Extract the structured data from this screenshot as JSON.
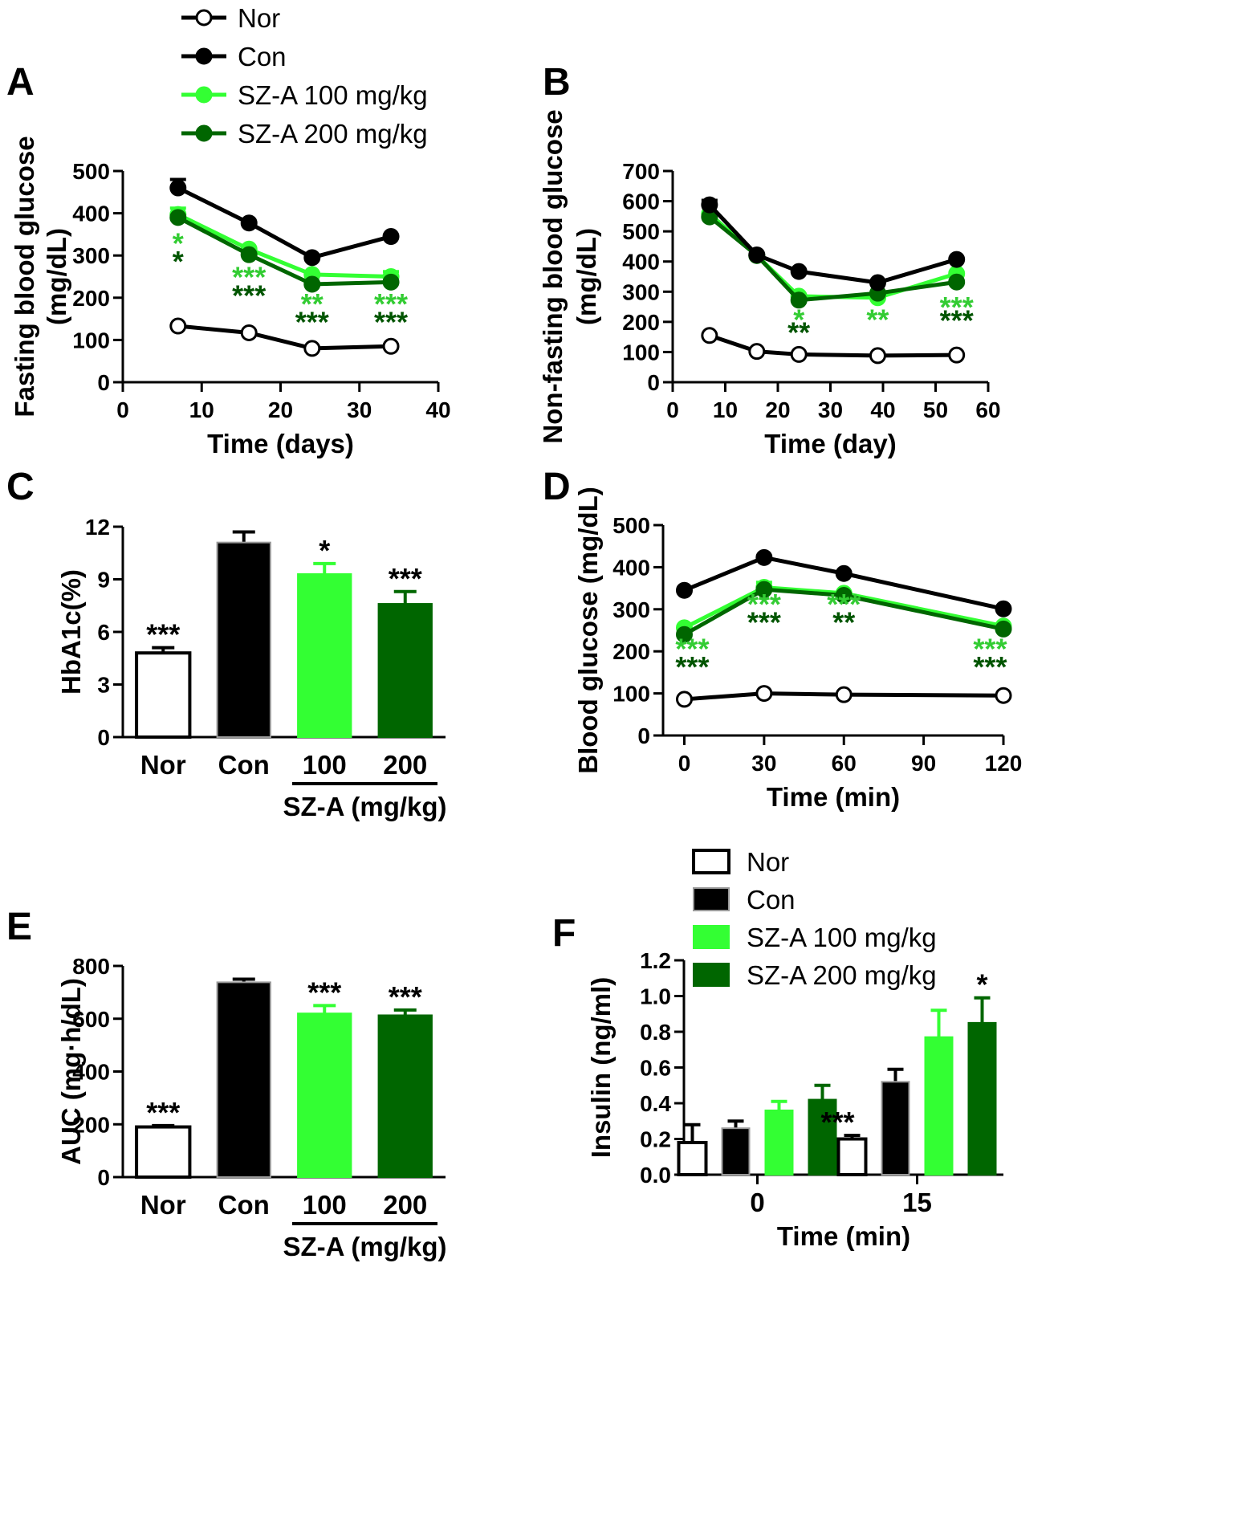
{
  "colors": {
    "Nor": "#ffffff",
    "Con": "#000000",
    "SZA100": "#33ff33",
    "SZA200": "#006600",
    "annotLight": "#33cc33",
    "annotDark": "#005500"
  },
  "legend_top": {
    "items": [
      {
        "label": "Nor",
        "key": "Nor",
        "marker": "open-circle"
      },
      {
        "label": "Con",
        "key": "Con",
        "marker": "filled-circle"
      },
      {
        "label": "SZ-A 100 mg/kg",
        "key": "SZA100",
        "marker": "filled-circle"
      },
      {
        "label": "SZ-A 200 mg/kg",
        "key": "SZA200",
        "marker": "filled-circle"
      }
    ]
  },
  "legend_f": {
    "items": [
      {
        "label": "Nor",
        "key": "Nor"
      },
      {
        "label": "Con",
        "key": "Con"
      },
      {
        "label": "SZ-A 100 mg/kg",
        "key": "SZA100"
      },
      {
        "label": "SZ-A 200 mg/kg",
        "key": "SZA200"
      }
    ]
  },
  "chart_data": [
    {
      "panel": "A",
      "type": "line",
      "xlabel": "Time (days)",
      "ylabel": "Fasting blood glucose (mg/dL)",
      "xlim": [
        0,
        40
      ],
      "ylim": [
        0,
        500
      ],
      "xticks": [
        0,
        10,
        20,
        30,
        40
      ],
      "yticks": [
        0,
        100,
        200,
        300,
        400,
        500
      ],
      "x": [
        7,
        16,
        24,
        34
      ],
      "series": [
        {
          "name": "Nor",
          "key": "Nor",
          "open": true,
          "values": [
            133,
            117,
            80,
            85
          ],
          "err": [
            0,
            0,
            0,
            0
          ]
        },
        {
          "name": "Con",
          "key": "Con",
          "values": [
            460,
            377,
            295,
            345
          ],
          "err": [
            20,
            0,
            0,
            0
          ]
        },
        {
          "name": "SZ-A 100 mg/kg",
          "key": "SZA100",
          "values": [
            397,
            315,
            255,
            250
          ],
          "err": [
            15,
            0,
            0,
            12
          ]
        },
        {
          "name": "SZ-A 200 mg/kg",
          "key": "SZA200",
          "values": [
            390,
            302,
            232,
            237
          ],
          "err": [
            0,
            0,
            0,
            0
          ]
        }
      ],
      "annotations": [
        {
          "x": 7,
          "y": 305,
          "text": "*",
          "color": "annotLight"
        },
        {
          "x": 7,
          "y": 262,
          "text": "*",
          "color": "annotDark"
        },
        {
          "x": 16,
          "y": 225,
          "text": "***",
          "color": "annotLight"
        },
        {
          "x": 16,
          "y": 182,
          "text": "***",
          "color": "annotDark"
        },
        {
          "x": 24,
          "y": 162,
          "text": "**",
          "color": "annotLight"
        },
        {
          "x": 24,
          "y": 119,
          "text": "***",
          "color": "annotDark"
        },
        {
          "x": 34,
          "y": 162,
          "text": "***",
          "color": "annotLight"
        },
        {
          "x": 34,
          "y": 119,
          "text": "***",
          "color": "annotDark"
        }
      ]
    },
    {
      "panel": "B",
      "type": "line",
      "xlabel": "Time (day)",
      "ylabel": "Non-fasting blood glucose (mg/dL)",
      "xlim": [
        0,
        60
      ],
      "ylim": [
        0,
        700
      ],
      "xticks": [
        0,
        10,
        20,
        30,
        40,
        50,
        60
      ],
      "yticks": [
        0,
        100,
        200,
        300,
        400,
        500,
        600,
        700
      ],
      "x": [
        7,
        16,
        24,
        39,
        54
      ],
      "series": [
        {
          "name": "Nor",
          "key": "Nor",
          "open": true,
          "values": [
            155,
            102,
            92,
            88,
            90
          ],
          "err": [
            0,
            0,
            0,
            0,
            0
          ]
        },
        {
          "name": "Con",
          "key": "Con",
          "values": [
            588,
            422,
            367,
            330,
            407
          ],
          "err": [
            15,
            0,
            0,
            0,
            0
          ]
        },
        {
          "name": "SZ-A 100 mg/kg",
          "key": "SZA100",
          "values": [
            558,
            420,
            285,
            280,
            360
          ],
          "err": [
            0,
            0,
            0,
            0,
            0
          ]
        },
        {
          "name": "SZ-A 200 mg/kg",
          "key": "SZA200",
          "values": [
            548,
            420,
            272,
            295,
            332
          ],
          "err": [
            0,
            0,
            0,
            0,
            0
          ]
        }
      ],
      "annotations": [
        {
          "x": 24,
          "y": 175,
          "text": "*",
          "color": "annotLight"
        },
        {
          "x": 24,
          "y": 132,
          "text": "**",
          "color": "annotDark"
        },
        {
          "x": 39,
          "y": 175,
          "text": "**",
          "color": "annotLight"
        },
        {
          "x": 54,
          "y": 215,
          "text": "***",
          "color": "annotLight"
        },
        {
          "x": 54,
          "y": 172,
          "text": "***",
          "color": "annotDark"
        }
      ]
    },
    {
      "panel": "C",
      "type": "bar",
      "ylabel": "HbA1c(%)",
      "ylim": [
        0,
        12
      ],
      "yticks": [
        0,
        3,
        6,
        9,
        12
      ],
      "categories": [
        "Nor",
        "Con",
        "100",
        "200"
      ],
      "values": [
        4.8,
        11.1,
        9.3,
        7.6
      ],
      "err": [
        0.3,
        0.6,
        0.6,
        0.7
      ],
      "keys": [
        "Nor",
        "Con",
        "SZA100",
        "SZA200"
      ],
      "sig": [
        "***",
        "",
        "*",
        "***"
      ],
      "group_label": "SZ-A (mg/kg)"
    },
    {
      "panel": "D",
      "type": "line",
      "xlabel": "Time (min)",
      "ylabel": "Blood glucose (mg/dL)",
      "xlim": [
        -8,
        120
      ],
      "ylim": [
        0,
        500
      ],
      "xticks": [
        0,
        30,
        60,
        90,
        120
      ],
      "yticks": [
        0,
        100,
        200,
        300,
        400,
        500
      ],
      "x": [
        0,
        30,
        60,
        120
      ],
      "series": [
        {
          "name": "Nor",
          "key": "Nor",
          "open": true,
          "values": [
            86,
            100,
            97,
            95
          ],
          "err": [
            0,
            0,
            0,
            0
          ]
        },
        {
          "name": "Con",
          "key": "Con",
          "values": [
            345,
            423,
            385,
            301
          ],
          "err": [
            0,
            0,
            0,
            0
          ]
        },
        {
          "name": "SZ-A 100 mg/kg",
          "key": "SZA100",
          "values": [
            256,
            352,
            338,
            260
          ],
          "err": [
            0,
            12,
            0,
            0
          ]
        },
        {
          "name": "SZ-A 200 mg/kg",
          "key": "SZA200",
          "values": [
            240,
            347,
            333,
            253
          ],
          "err": [
            0,
            0,
            0,
            0
          ]
        }
      ],
      "annotations": [
        {
          "x": 30,
          "y": 288,
          "text": "***",
          "color": "annotLight"
        },
        {
          "x": 30,
          "y": 245,
          "text": "***",
          "color": "annotDark"
        },
        {
          "x": 60,
          "y": 288,
          "text": "***",
          "color": "annotLight"
        },
        {
          "x": 60,
          "y": 245,
          "text": "**",
          "color": "annotDark"
        },
        {
          "x": 3,
          "y": 182,
          "text": "***",
          "color": "annotLight"
        },
        {
          "x": 3,
          "y": 139,
          "text": "***",
          "color": "annotDark"
        },
        {
          "x": 115,
          "y": 182,
          "text": "***",
          "color": "annotLight"
        },
        {
          "x": 115,
          "y": 139,
          "text": "***",
          "color": "annotDark"
        }
      ]
    },
    {
      "panel": "E",
      "type": "bar",
      "ylabel": "AUC (mg·h/dL)",
      "ylim": [
        0,
        800
      ],
      "yticks": [
        0,
        200,
        400,
        600,
        800
      ],
      "categories": [
        "Nor",
        "Con",
        "100",
        "200"
      ],
      "values": [
        190,
        738,
        620,
        613
      ],
      "err": [
        5,
        12,
        30,
        20
      ],
      "keys": [
        "Nor",
        "Con",
        "SZA100",
        "SZA200"
      ],
      "sig": [
        "***",
        "",
        "***",
        "***"
      ],
      "group_label": "SZ-A (mg/kg)"
    },
    {
      "panel": "F",
      "type": "bar",
      "xlabel": "Time (min)",
      "ylabel": "Insulin (ng/ml)",
      "ylim": [
        0,
        1.2
      ],
      "yticks": [
        "0.0",
        "0.2",
        "0.4",
        "0.6",
        "0.8",
        "1.0",
        "1.2"
      ],
      "categories": [
        "0",
        "15"
      ],
      "series": [
        {
          "name": "Nor",
          "key": "Nor",
          "values": [
            0.18,
            0.2
          ],
          "err": [
            0.1,
            0.02
          ]
        },
        {
          "name": "Con",
          "key": "Con",
          "values": [
            0.26,
            0.52
          ],
          "err": [
            0.04,
            0.07
          ]
        },
        {
          "name": "SZ-A 100 mg/kg",
          "key": "SZA100",
          "values": [
            0.36,
            0.77
          ],
          "err": [
            0.05,
            0.15
          ]
        },
        {
          "name": "SZ-A 200 mg/kg",
          "key": "SZA200",
          "values": [
            0.42,
            0.85
          ],
          "err": [
            0.08,
            0.14
          ]
        }
      ],
      "sig": [
        [
          "",
          "",
          "",
          ""
        ],
        [
          "***",
          "",
          "",
          "*"
        ]
      ]
    }
  ]
}
